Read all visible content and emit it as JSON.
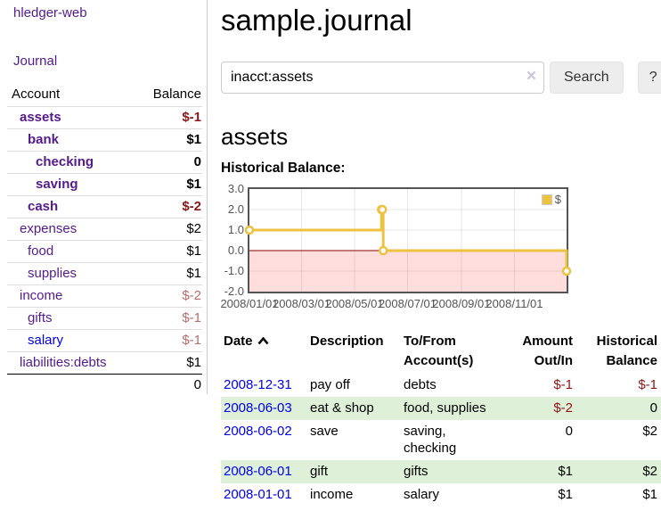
{
  "sidebar": {
    "brand": "hledger-web",
    "journal_link": "Journal",
    "accounts": {
      "header": {
        "account": "Account",
        "balance": "Balance"
      },
      "rows": [
        {
          "name": "assets",
          "balance": "$-1",
          "depth": 1,
          "in_account": true,
          "negative": true,
          "unvisited": false
        },
        {
          "name": "bank",
          "balance": "$1",
          "depth": 2,
          "in_account": true,
          "negative": false,
          "unvisited": false
        },
        {
          "name": "checking",
          "balance": "0",
          "depth": 3,
          "in_account": true,
          "negative": false,
          "unvisited": false
        },
        {
          "name": "saving",
          "balance": "$1",
          "depth": 3,
          "in_account": true,
          "negative": false,
          "unvisited": false
        },
        {
          "name": "cash",
          "balance": "$-2",
          "depth": 2,
          "in_account": true,
          "negative": true,
          "unvisited": false
        },
        {
          "name": "expenses",
          "balance": "$2",
          "depth": 1,
          "in_account": false,
          "negative": false,
          "unvisited": false
        },
        {
          "name": "food",
          "balance": "$1",
          "depth": 2,
          "in_account": false,
          "negative": false,
          "unvisited": false
        },
        {
          "name": "supplies",
          "balance": "$1",
          "depth": 2,
          "in_account": false,
          "negative": false,
          "unvisited": false
        },
        {
          "name": "income",
          "balance": "$-2",
          "depth": 1,
          "in_account": false,
          "negative": true,
          "unvisited": false
        },
        {
          "name": "gifts",
          "balance": "$-1",
          "depth": 2,
          "in_account": false,
          "negative": true,
          "unvisited": false
        },
        {
          "name": "salary",
          "balance": "$-1",
          "depth": 2,
          "in_account": false,
          "negative": true,
          "unvisited": true
        },
        {
          "name": "liabilities:debts",
          "balance": "$1",
          "depth": 1,
          "in_account": false,
          "negative": false,
          "unvisited": false
        }
      ],
      "total": "0"
    }
  },
  "header": {
    "title": "sample.journal"
  },
  "search": {
    "value": "inacct:assets",
    "clear_icon": "×",
    "search_button": "Search",
    "help_button": "?"
  },
  "account_page": {
    "heading": "assets",
    "chart_title": "Historical Balance:"
  },
  "chart_data": {
    "type": "line",
    "step": true,
    "title": "Historical Balance",
    "legend": "$",
    "legend_position": "top-right",
    "series": [
      {
        "name": "$",
        "color": "#edc240",
        "points": [
          [
            "2008-01-01",
            1
          ],
          [
            "2008-06-01",
            2
          ],
          [
            "2008-06-02",
            2
          ],
          [
            "2008-06-03",
            0
          ],
          [
            "2008-12-31",
            -1
          ]
        ]
      }
    ],
    "x_range": [
      "2008-01-01",
      "2008-12-31"
    ],
    "x_ticks": [
      "2008/01/01",
      "2008/03/01",
      "2008/05/01",
      "2008/07/01",
      "2008/09/01",
      "2008/11/01"
    ],
    "y_ticks": [
      "3.0",
      "2.0",
      "1.0",
      "0.0",
      "-1.0",
      "-2.0"
    ],
    "ylim": [
      -2,
      3
    ],
    "grid": true,
    "negative_region_color": "#ffdddd",
    "zero_line_color": "#8b0000"
  },
  "register": {
    "headers": {
      "date": "Date",
      "description": "Description",
      "account": "To/From Account(s)",
      "amount": "Amount Out/In",
      "balance": "Historical Balance"
    },
    "rows": [
      {
        "date": "2008-12-31",
        "description": "pay off",
        "account": "debts",
        "amount": "$-1",
        "balance": "$-1",
        "amount_negative": true,
        "balance_negative": true
      },
      {
        "date": "2008-06-03",
        "description": "eat & shop",
        "account": "food, supplies",
        "amount": "$-2",
        "balance": "0",
        "amount_negative": true,
        "balance_negative": false
      },
      {
        "date": "2008-06-02",
        "description": "save",
        "account": "saving, checking",
        "amount": "0",
        "balance": "$2",
        "amount_negative": false,
        "balance_negative": false
      },
      {
        "date": "2008-06-01",
        "description": "gift",
        "account": "gifts",
        "amount": "$1",
        "balance": "$2",
        "amount_negative": false,
        "balance_negative": false
      },
      {
        "date": "2008-01-01",
        "description": "income",
        "account": "salary",
        "amount": "$1",
        "balance": "$1",
        "amount_negative": false,
        "balance_negative": false
      }
    ]
  }
}
